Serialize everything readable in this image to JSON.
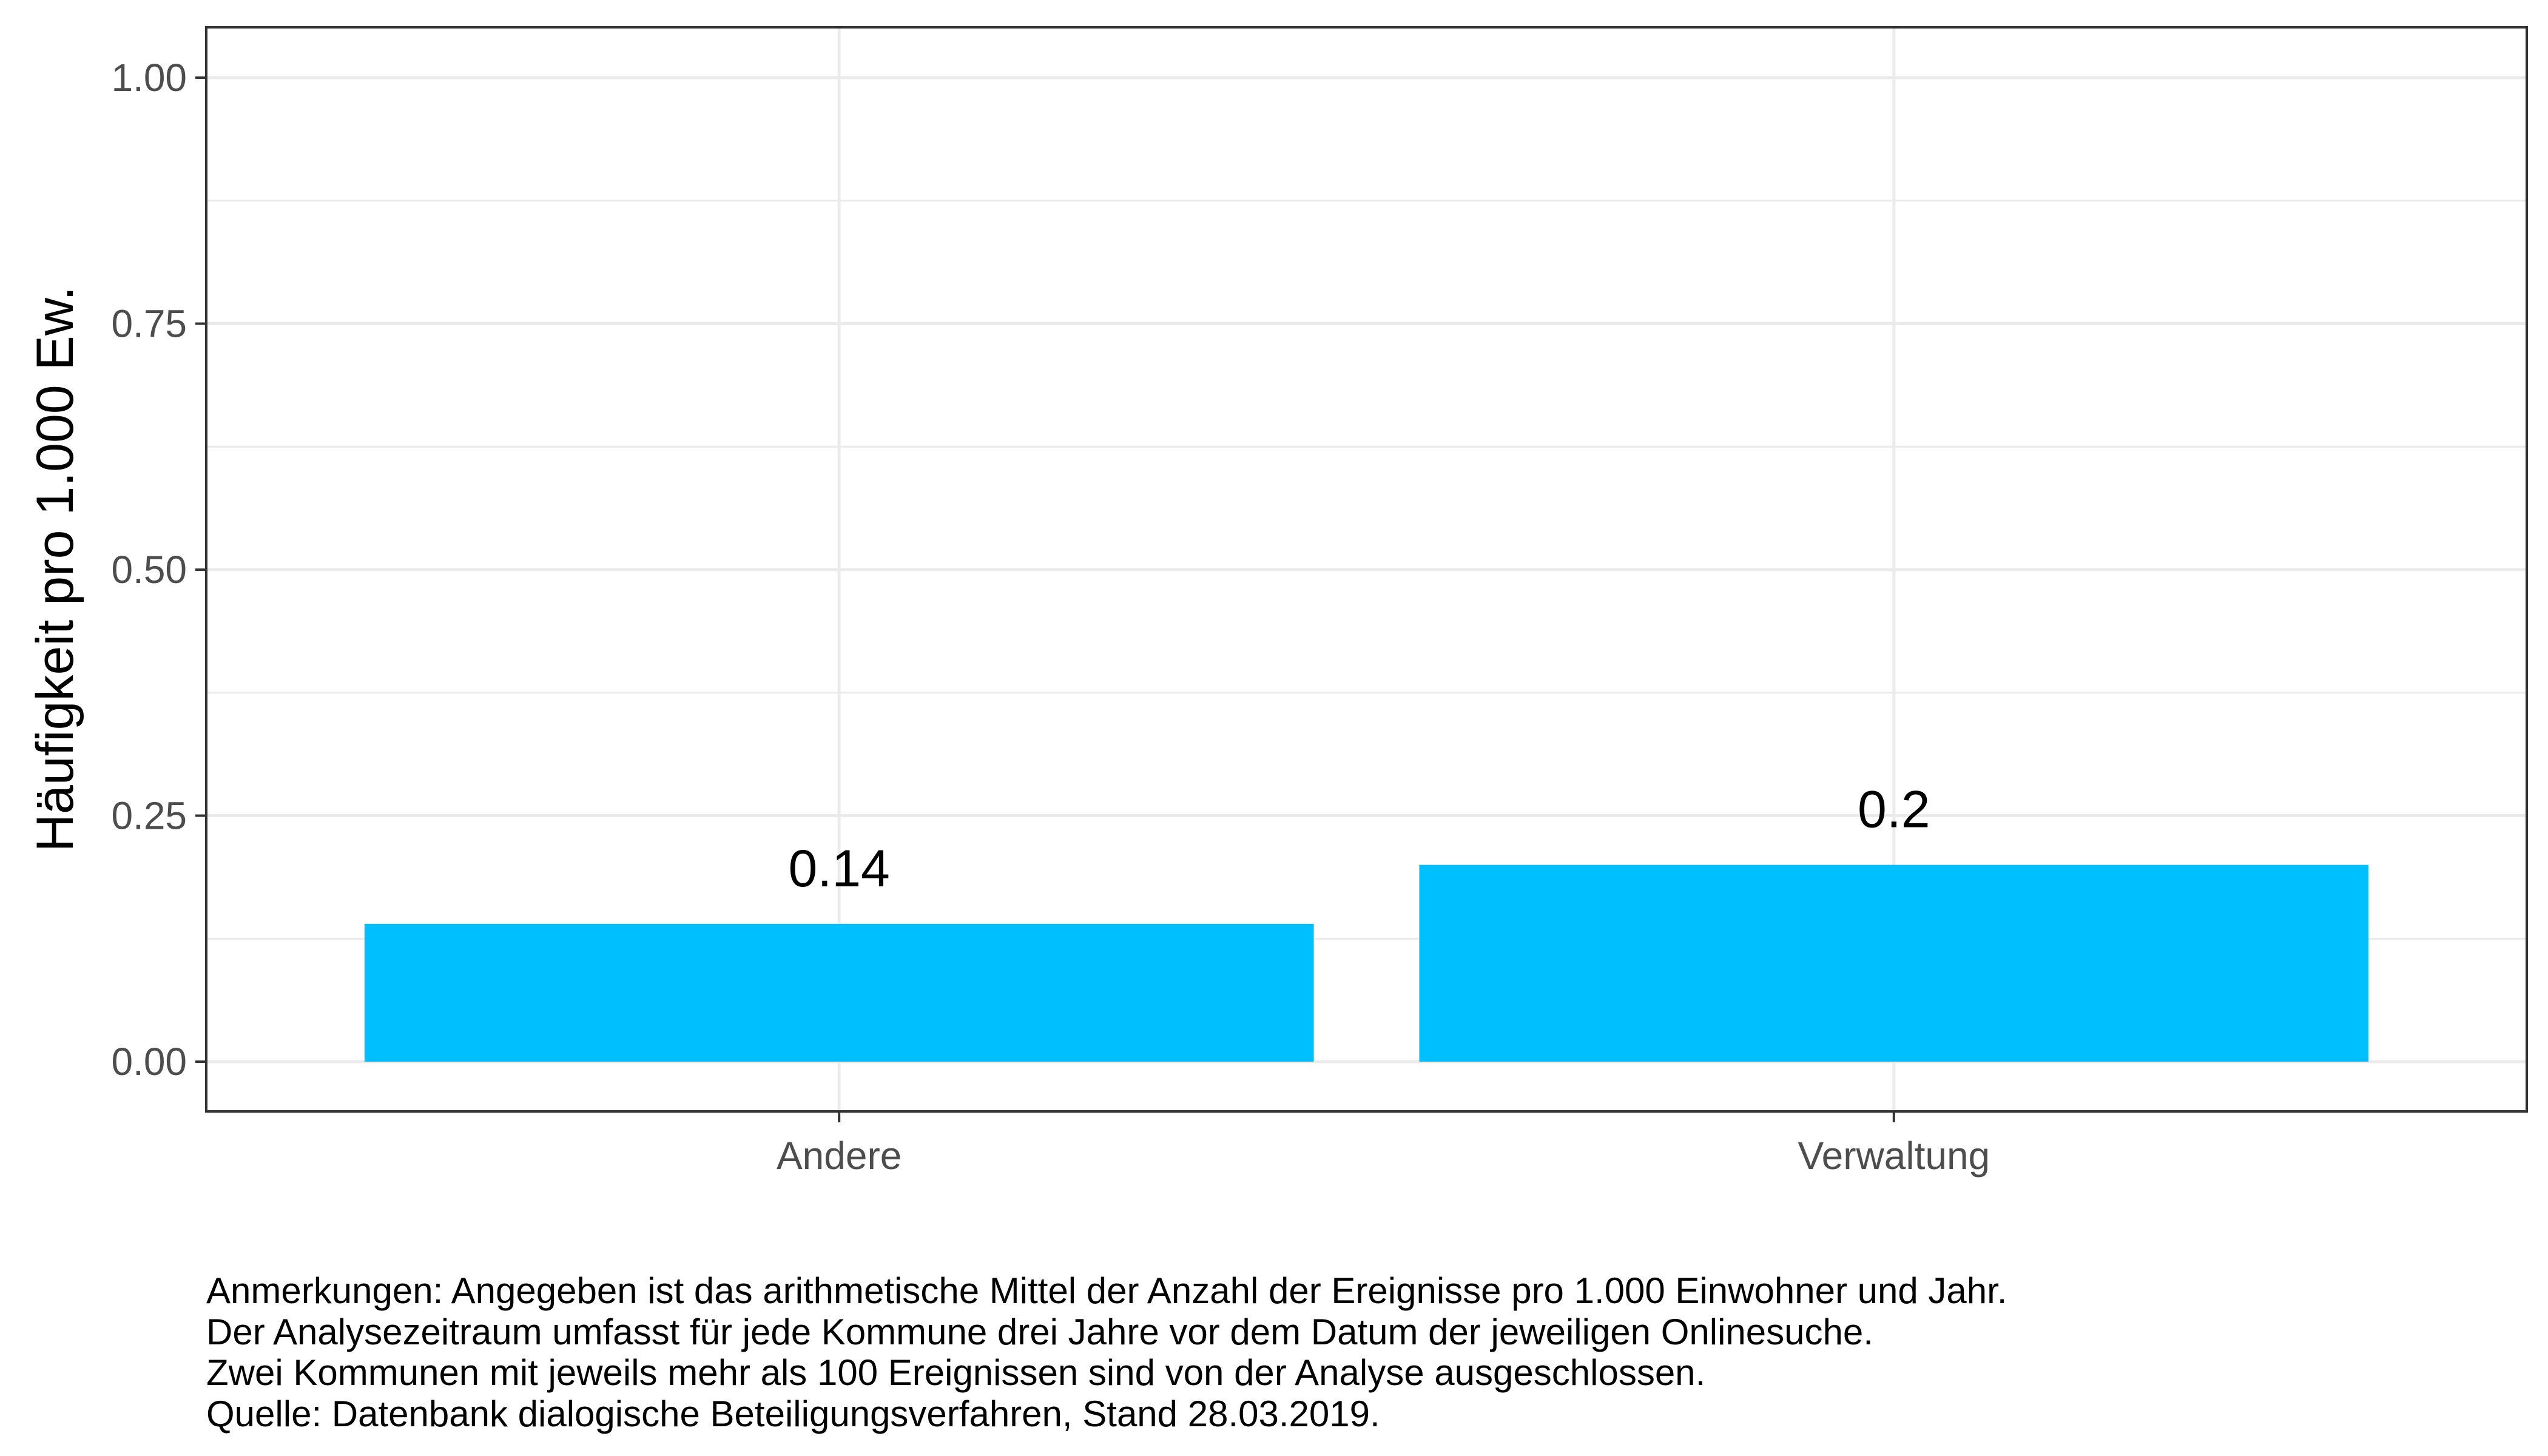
{
  "chart_data": {
    "type": "bar",
    "title": "",
    "xlabel": "",
    "ylabel": "Häufigkeit pro 1.000 Ew.",
    "categories": [
      "Andere",
      "Verwaltung"
    ],
    "values": [
      0.14,
      0.2
    ],
    "value_labels": [
      "0.14",
      "0.2"
    ],
    "ylim": [
      0,
      1
    ],
    "yticks": [
      "0.00",
      "0.25",
      "0.50",
      "0.75",
      "1.00"
    ],
    "grid": true,
    "bar_color": "#00BFFF"
  },
  "notes": [
    "Anmerkungen: Angegeben ist das arithmetische Mittel der Anzahl der Ereignisse pro 1.000 Einwohner und Jahr.",
    "Der Analysezeitraum umfasst für jede Kommune drei Jahre vor dem Datum der jeweiligen Onlinesuche.",
    "Zwei Kommunen mit jeweils mehr als 100 Ereignissen sind von der Analyse ausgeschlossen.",
    "Quelle: Datenbank dialogische Beteiligungsverfahren, Stand 28.03.2019."
  ]
}
